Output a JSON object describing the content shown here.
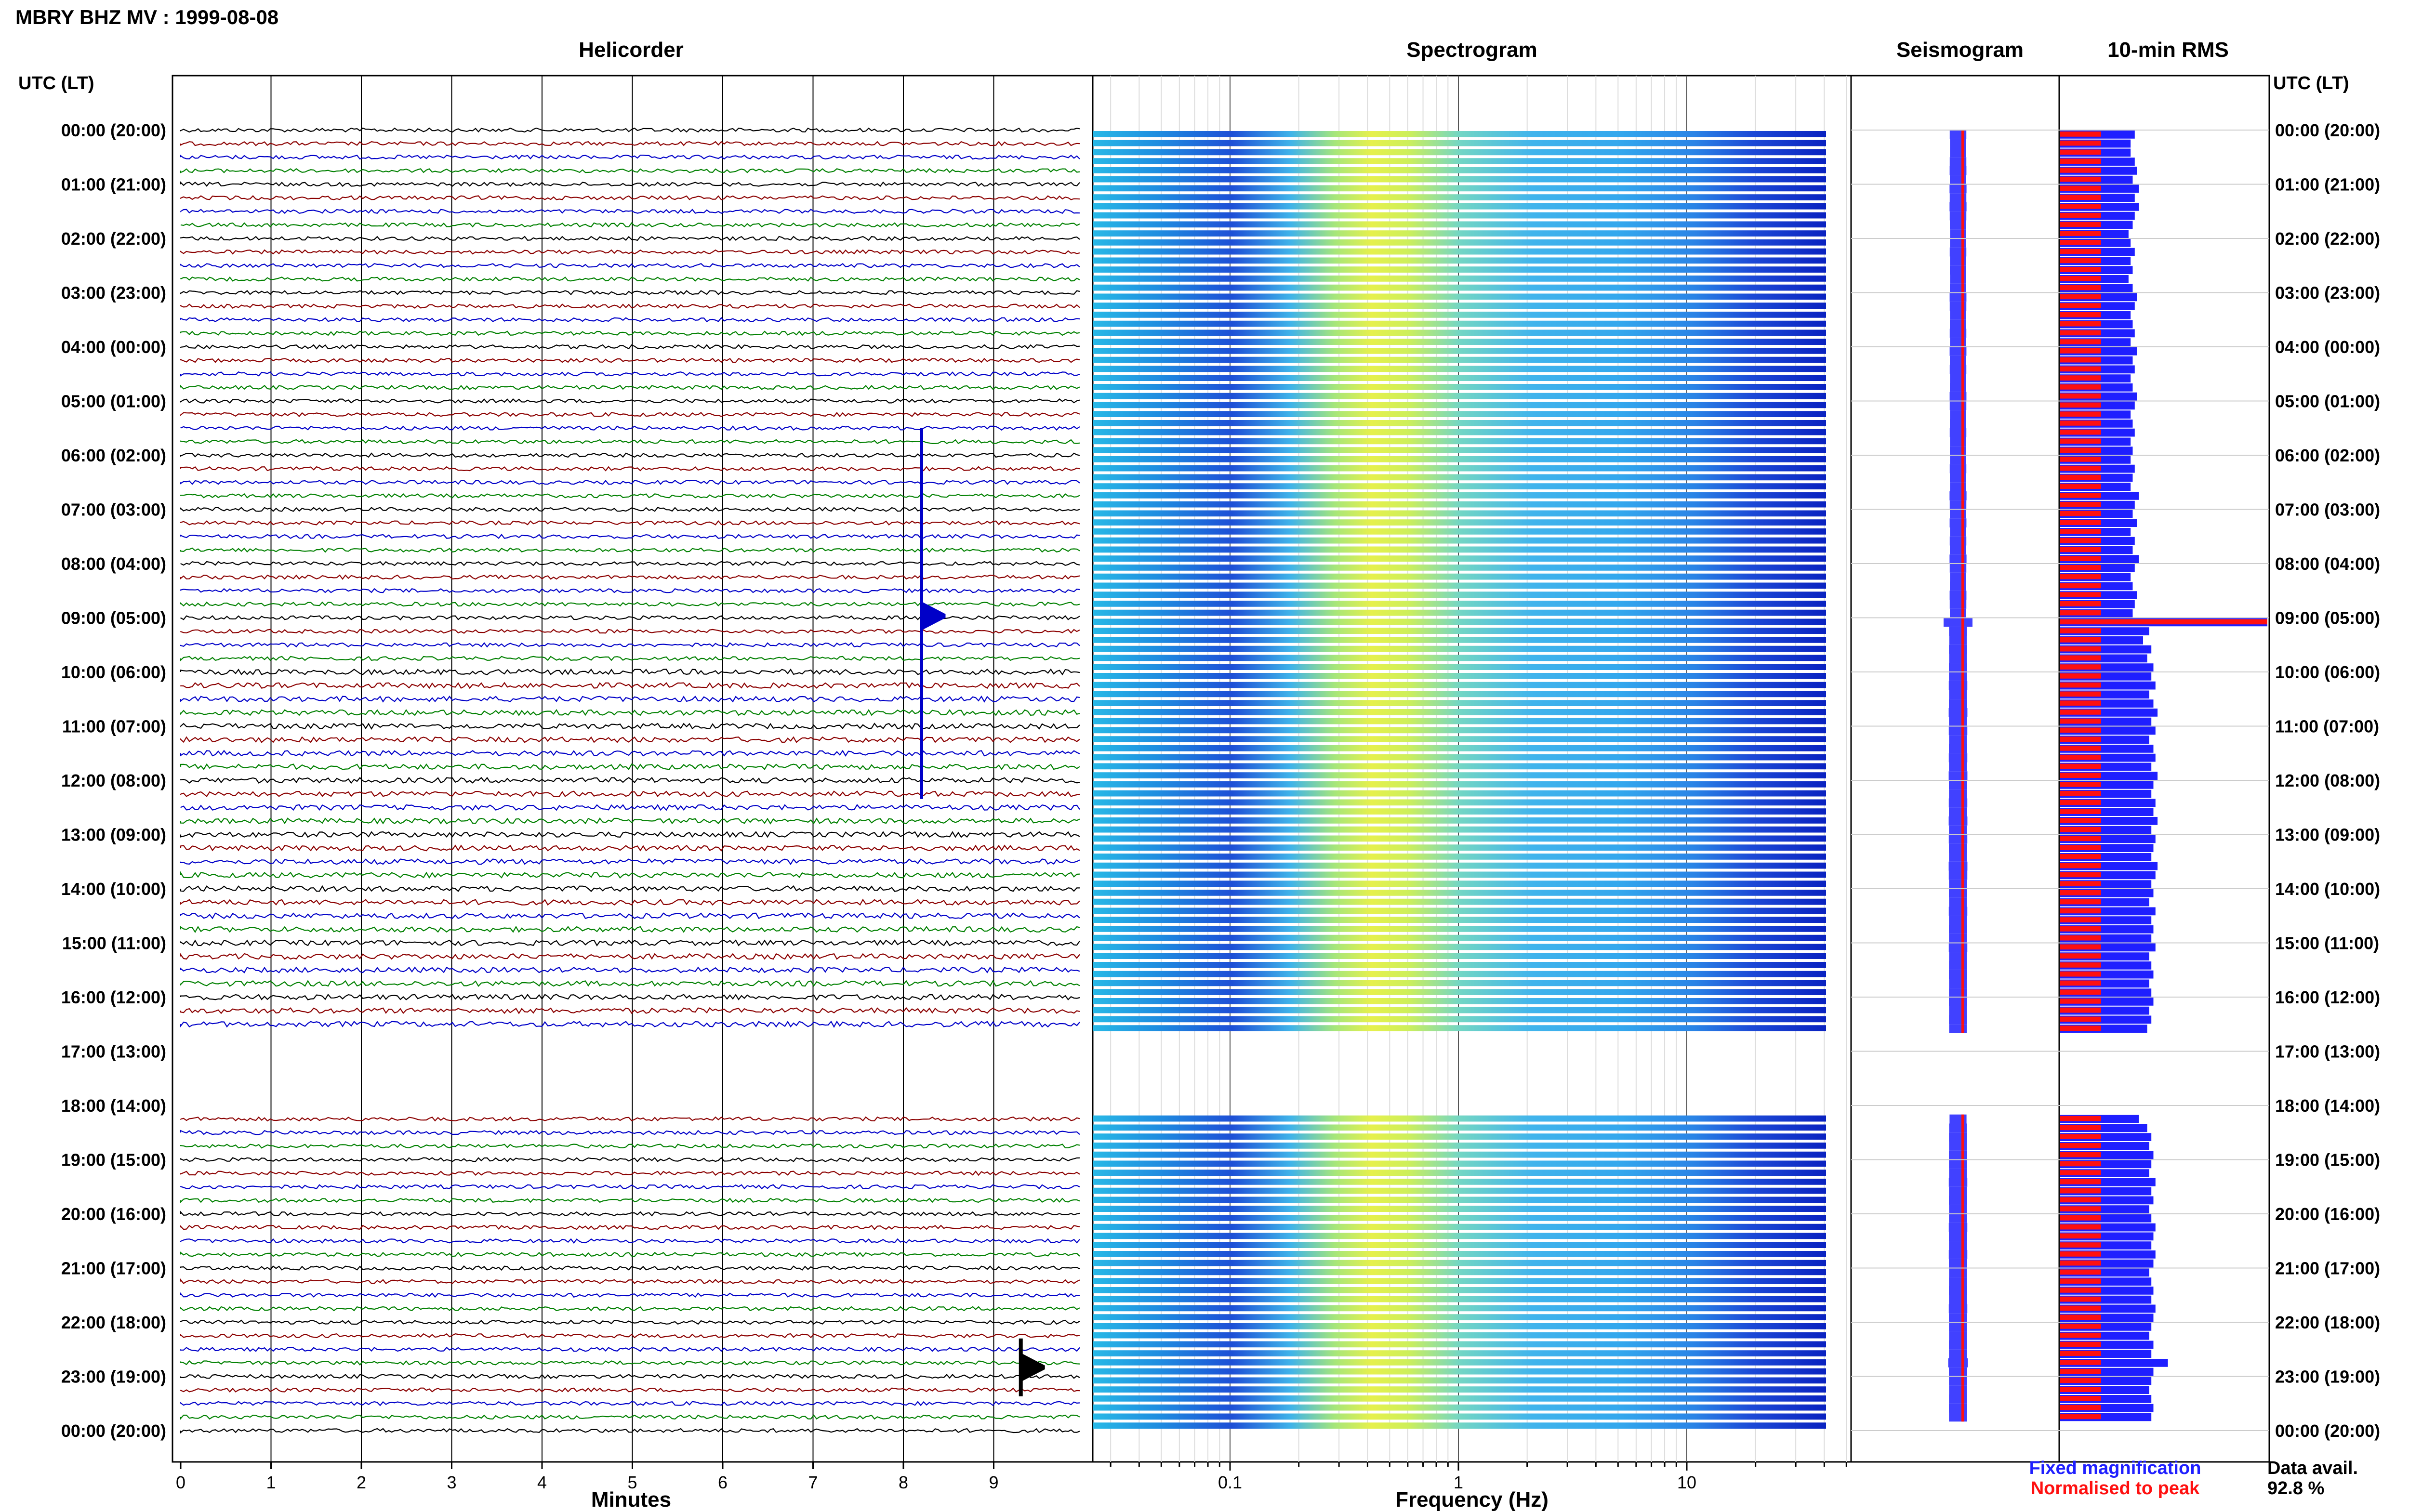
{
  "title": "MBRY BHZ MV : 1999-08-08",
  "panels": {
    "helicorder": "Helicorder",
    "spectrogram": "Spectrogram",
    "seismogram": "Seismogram",
    "rms": "10-min RMS"
  },
  "axis": {
    "left_header": "UTC (LT)",
    "right_header": "UTC (LT)",
    "minutes_label": "Minutes",
    "frequency_label": "Frequency (Hz)"
  },
  "legend": {
    "fixed": "Fixed magnification",
    "normalised": "Normalised to peak",
    "fixed_color": "#1f1fff",
    "normalised_color": "#ff1010"
  },
  "availability": {
    "label": "Data avail.",
    "value": "92.8 %"
  },
  "chart_data": {
    "type": "heatmap",
    "date": "1999-08-08",
    "station": "MBRY",
    "channel": "BHZ",
    "network": "MV",
    "hour_labels": [
      "00:00 (20:00)",
      "01:00 (21:00)",
      "02:00 (22:00)",
      "03:00 (23:00)",
      "04:00 (00:00)",
      "05:00 (01:00)",
      "06:00 (02:00)",
      "07:00 (03:00)",
      "08:00 (04:00)",
      "09:00 (05:00)",
      "10:00 (06:00)",
      "11:00 (07:00)",
      "12:00 (08:00)",
      "13:00 (09:00)",
      "14:00 (10:00)",
      "15:00 (11:00)",
      "16:00 (12:00)",
      "17:00 (13:00)",
      "18:00 (14:00)",
      "19:00 (15:00)",
      "20:00 (16:00)",
      "21:00 (17:00)",
      "22:00 (18:00)",
      "23:00 (19:00)",
      "00:00 (20:00)"
    ],
    "minute_ticks": [
      "0",
      "1",
      "2",
      "3",
      "4",
      "5",
      "6",
      "7",
      "8",
      "9"
    ],
    "frequency_ticks": [
      "0.1",
      "1",
      "10"
    ],
    "frequency_range_hz": [
      0.02,
      50
    ],
    "frequency_scale": "log",
    "helicorder_trace_colors": [
      "#000000",
      "#8b0000",
      "#0000c8",
      "#008000"
    ],
    "data_gap_utc": [
      "16:40",
      "18:10"
    ],
    "events": [
      {
        "time_utc": "08:58",
        "minute": 8.2,
        "description": "large event"
      },
      {
        "time_utc": "22:50",
        "minute": 9.3,
        "description": "event"
      }
    ],
    "rms_fixed_magnification": [
      0.36,
      0.34,
      0.34,
      0.36,
      0.37,
      0.35,
      0.38,
      0.36,
      0.38,
      0.36,
      0.35,
      0.33,
      0.34,
      0.36,
      0.34,
      0.35,
      0.33,
      0.35,
      0.37,
      0.36,
      0.34,
      0.35,
      0.36,
      0.34,
      0.37,
      0.35,
      0.36,
      0.34,
      0.35,
      0.37,
      0.36,
      0.34,
      0.35,
      0.36,
      0.34,
      0.35,
      0.34,
      0.36,
      0.35,
      0.34,
      0.38,
      0.36,
      0.35,
      0.37,
      0.34,
      0.36,
      0.35,
      0.38,
      0.36,
      0.34,
      0.35,
      0.37,
      0.36,
      0.35,
      1.0,
      0.43,
      0.4,
      0.44,
      0.42,
      0.45,
      0.44,
      0.46,
      0.43,
      0.45,
      0.47,
      0.44,
      0.46,
      0.43,
      0.45,
      0.46,
      0.44,
      0.47,
      0.45,
      0.44,
      0.46,
      0.45,
      0.47,
      0.44,
      0.46,
      0.45,
      0.44,
      0.47,
      0.46,
      0.44,
      0.45,
      0.43,
      0.46,
      0.44,
      0.45,
      0.44,
      0.46,
      0.43,
      0.44,
      0.45,
      0.43,
      0.44,
      0.45,
      0.43,
      0.44,
      0.42,
      null,
      null,
      null,
      null,
      null,
      null,
      null,
      null,
      null,
      0.38,
      0.42,
      0.44,
      0.43,
      0.45,
      0.44,
      0.43,
      0.46,
      0.44,
      0.45,
      0.43,
      0.44,
      0.46,
      0.45,
      0.44,
      0.46,
      0.45,
      0.43,
      0.44,
      0.45,
      0.44,
      0.46,
      0.45,
      0.44,
      0.43,
      0.45,
      0.44,
      0.52,
      0.45,
      0.44,
      0.43,
      0.44,
      0.45,
      0.44
    ]
  }
}
